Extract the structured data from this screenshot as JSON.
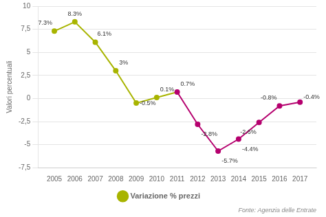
{
  "chart_data": {
    "type": "line",
    "ylabel": "Valori percentuali",
    "source": "Fonte: Agenzia delle Entrate",
    "x": [
      2005,
      2006,
      2007,
      2008,
      2009,
      2010,
      2011,
      2012,
      2013,
      2014,
      2015,
      2016,
      2017
    ],
    "series": [
      {
        "name": "Variazione % prezzi",
        "colors": [
          "#a8b400",
          "#a8b400",
          "#a8b400",
          "#a8b400",
          "#a8b400",
          "#a8b400",
          "#b5006e",
          "#b5006e",
          "#b5006e",
          "#b5006e",
          "#b5006e",
          "#b5006e",
          "#b5006e"
        ],
        "marker": "circle",
        "values": [
          7.3,
          8.3,
          6.1,
          3.0,
          -0.5,
          0.1,
          0.7,
          -2.8,
          -5.7,
          -4.4,
          -2.6,
          -0.8,
          -0.4
        ],
        "value_labels": [
          "7.3%",
          "8.3%",
          "6.1%",
          "3%",
          "-0.5%",
          "0.1%",
          "0.7%",
          "-2.8%",
          "-5.7%",
          "-4.4%",
          "-2.6%",
          "-0.8%",
          "-0.4%"
        ]
      }
    ],
    "xlim": [
      2004.2,
      2017.8
    ],
    "xticks": [
      2005,
      2006,
      2007,
      2008,
      2009,
      2010,
      2011,
      2012,
      2013,
      2014,
      2015,
      2016,
      2017
    ],
    "ylim": [
      -7.5,
      10
    ],
    "yticks": [
      {
        "value": -7.5,
        "label": "-7,5"
      },
      -5,
      {
        "value": -2.5,
        "label": "-2,5"
      },
      0,
      {
        "value": 2.5,
        "label": "2,5"
      },
      5,
      {
        "value": 7.5,
        "label": "7,5"
      },
      10
    ],
    "grid": "y",
    "legend": "bottom",
    "data_labels": true
  }
}
